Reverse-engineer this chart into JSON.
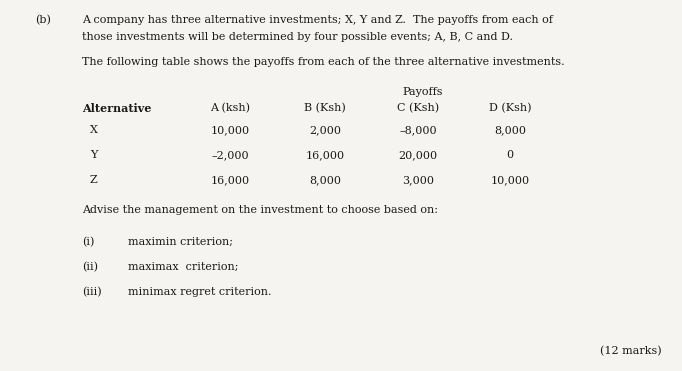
{
  "bg_color": "#f5f4f0",
  "text_color": "#1a1a1a",
  "part_label": "(b)",
  "intro_line1": "A company has three alternative investments; X, Y and Z.  The payoffs from each of",
  "intro_line2": "those investments will be determined by four possible events; A, B, C and D.",
  "table_intro": "The following table shows the payoffs from each of the three alternative investments.",
  "payoffs_header": "Payoffs",
  "col_headers": [
    "Alternative",
    "A (ksh)",
    "B (Ksh)",
    "C (Ksh)",
    "D (Ksh)"
  ],
  "rows": [
    [
      "X",
      "10,000",
      "2,000",
      "–8,000",
      "8,000"
    ],
    [
      "Y",
      "–2,000",
      "16,000",
      "20,000",
      "0"
    ],
    [
      "Z",
      "16,000",
      "8,000",
      "3,000",
      "10,000"
    ]
  ],
  "advise_text": "Advise the management on the investment to choose based on:",
  "criteria": [
    [
      "(i)",
      "maximin criterion;"
    ],
    [
      "(ii)",
      "maximax  criterion;"
    ],
    [
      "(iii)",
      "minimax regret criterion."
    ]
  ],
  "marks": "(12 marks)",
  "fs": 8.0
}
